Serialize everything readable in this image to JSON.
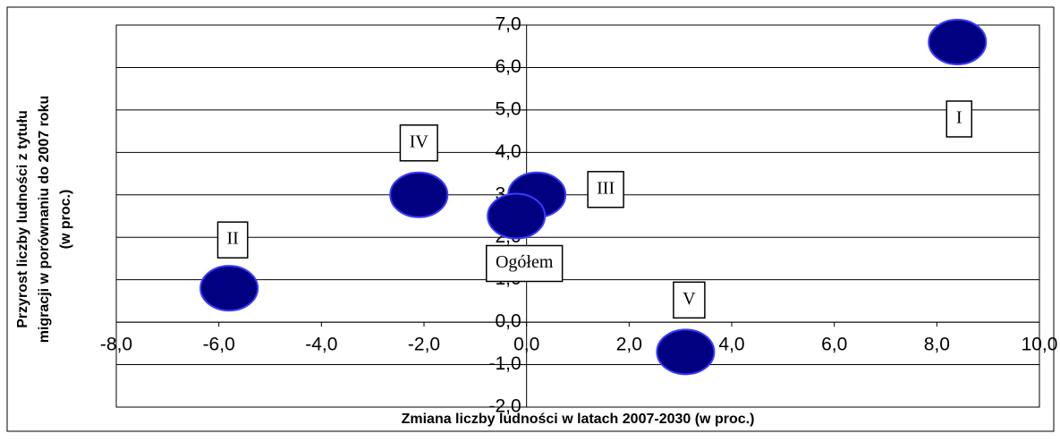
{
  "chart_data": {
    "type": "scatter",
    "x_label": "Zmiana liczby ludności w latach 2007-2030 (w proc.)",
    "y_label": [
      "Przyrost liczby ludności z tytułu",
      "migracji w porównaniu do 2007 roku",
      "(w proc.)"
    ],
    "series": [
      {
        "color": "#000080",
        "x": [
          8.4,
          -5.8,
          0.2,
          -2.1,
          3.1,
          -0.2
        ],
        "values": [
          6.6,
          0.8,
          3.0,
          3.0,
          -0.7,
          2.5
        ],
        "labels": [
          "I",
          "II",
          "III",
          "IV",
          "V",
          "Ogółem"
        ]
      }
    ],
    "xlim": [
      -8,
      10
    ],
    "xticks": [
      {
        "value": -8,
        "label": "-8,0"
      },
      {
        "value": -6,
        "label": "-6,0"
      },
      {
        "value": -4,
        "label": "-4,0"
      },
      {
        "value": -2,
        "label": "-2,0"
      },
      {
        "value": 0,
        "label": "0,0"
      },
      {
        "value": 2,
        "label": "2,0"
      },
      {
        "value": 4,
        "label": "4,0"
      },
      {
        "value": 6,
        "label": "6,0"
      },
      {
        "value": 8,
        "label": "8,0"
      },
      {
        "value": 10,
        "label": "10,0"
      }
    ],
    "ylim": [
      -2,
      7
    ],
    "yticks": [
      {
        "value": -2,
        "label": "-2,0"
      },
      {
        "value": -1,
        "label": "-1,0"
      },
      {
        "value": 0,
        "label": "0,0"
      },
      {
        "value": 1,
        "label": "1,0"
      },
      {
        "value": 2,
        "label": "2,0"
      },
      {
        "value": 3,
        "label": "3,0"
      },
      {
        "value": 4,
        "label": "4,0"
      },
      {
        "value": 5,
        "label": "5,0"
      },
      {
        "value": 6,
        "label": "6,0"
      },
      {
        "value": 7,
        "label": "7,0"
      }
    ],
    "grid": true
  }
}
